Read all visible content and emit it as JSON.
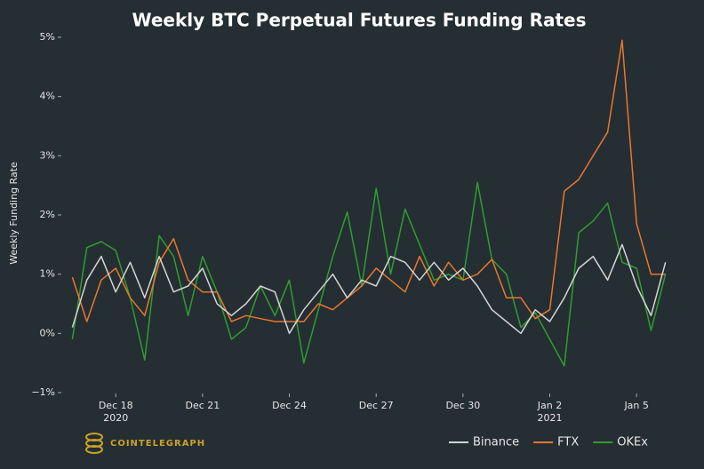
{
  "chart_data": {
    "type": "line",
    "title": "Weekly BTC Perpetual Futures Funding Rates",
    "ylabel": "Weekly Funding Rate",
    "source": "COINTELEGRAPH",
    "x": [
      -1.5,
      -1,
      -0.5,
      0,
      0.5,
      1,
      1.5,
      2,
      2.5,
      3,
      3.5,
      4,
      4.5,
      5,
      5.5,
      6,
      6.5,
      7,
      7.5,
      8,
      8.5,
      9,
      9.5,
      10,
      10.5,
      11,
      11.5,
      12,
      12.5,
      13,
      13.5,
      14,
      14.5,
      15,
      15.5,
      16,
      16.5,
      17,
      17.5,
      18,
      18.5,
      19
    ],
    "xlim": [
      -1.85,
      19.5
    ],
    "xticks": [
      {
        "value": 0,
        "label": "Dec 18"
      },
      {
        "value": 3,
        "label": "Dec 21"
      },
      {
        "value": 6,
        "label": "Dec 24"
      },
      {
        "value": 9,
        "label": "Dec 27"
      },
      {
        "value": 12,
        "label": "Dec 30"
      },
      {
        "value": 15,
        "label": "Jan 2"
      },
      {
        "value": 18,
        "label": "Jan 5"
      }
    ],
    "xtick_sublabels": [
      {
        "value": 0,
        "label": "2020"
      },
      {
        "value": 15,
        "label": "2021"
      }
    ],
    "ylim": [
      -1,
      5
    ],
    "yticks": [
      {
        "value": -1,
        "label": "−1%"
      },
      {
        "value": 0,
        "label": "0%"
      },
      {
        "value": 1,
        "label": "1%"
      },
      {
        "value": 2,
        "label": "2%"
      },
      {
        "value": 3,
        "label": "3%"
      },
      {
        "value": 4,
        "label": "4%"
      },
      {
        "value": 5,
        "label": "5%"
      }
    ],
    "grid": false,
    "legend": "bottom-right",
    "series": [
      {
        "name": "Binance",
        "color": "#d4d4d4",
        "values": [
          0.1,
          0.9,
          1.3,
          0.7,
          1.2,
          0.6,
          1.3,
          0.7,
          0.8,
          1.1,
          0.5,
          0.3,
          0.5,
          0.8,
          0.7,
          0.0,
          0.4,
          0.7,
          1.0,
          0.6,
          0.9,
          0.8,
          1.3,
          1.2,
          0.9,
          1.2,
          0.9,
          1.1,
          0.8,
          0.4,
          0.2,
          0.0,
          0.4,
          0.2,
          0.6,
          1.1,
          1.3,
          0.9,
          1.5,
          0.8,
          0.3,
          1.2
        ]
      },
      {
        "name": "FTX",
        "color": "#e8772e",
        "values": [
          0.95,
          0.2,
          0.9,
          1.1,
          0.6,
          0.3,
          1.2,
          1.6,
          0.9,
          0.7,
          0.7,
          0.2,
          0.3,
          0.25,
          0.2,
          0.2,
          0.2,
          0.5,
          0.4,
          0.6,
          0.8,
          1.1,
          0.9,
          0.7,
          1.3,
          0.8,
          1.2,
          0.9,
          1.0,
          1.25,
          0.6,
          0.6,
          0.25,
          0.4,
          2.4,
          2.6,
          3.0,
          3.4,
          4.95,
          1.85,
          1.0,
          1.0
        ]
      },
      {
        "name": "OKEx",
        "color": "#2f9d2f",
        "values": [
          -0.1,
          1.45,
          1.55,
          1.4,
          0.6,
          -0.45,
          1.65,
          1.3,
          0.3,
          1.3,
          0.7,
          -0.1,
          0.1,
          0.8,
          0.3,
          0.9,
          -0.5,
          0.4,
          1.3,
          2.05,
          0.8,
          2.45,
          1.0,
          2.1,
          1.5,
          0.9,
          1.0,
          0.9,
          2.55,
          1.25,
          1.0,
          0.1,
          0.35,
          -0.1,
          -0.55,
          1.7,
          1.9,
          2.2,
          1.2,
          1.1,
          0.05,
          1.0
        ]
      }
    ]
  }
}
